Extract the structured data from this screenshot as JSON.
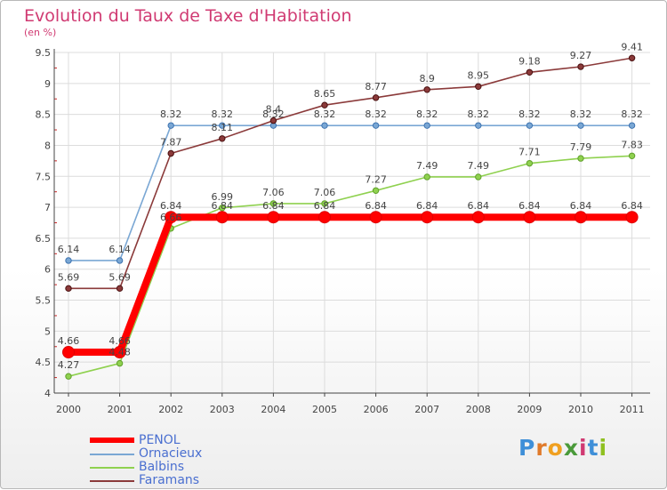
{
  "chart_data": {
    "type": "line",
    "title": "Evolution du Taux de Taxe d'Habitation",
    "subtitle": "(en %)",
    "x": [
      "2000",
      "2001",
      "2002",
      "2003",
      "2004",
      "2005",
      "2006",
      "2007",
      "2008",
      "2009",
      "2010",
      "2011"
    ],
    "yticks": [
      "4",
      "4.5",
      "5",
      "5.5",
      "6",
      "6.5",
      "7",
      "7.5",
      "8",
      "8.5",
      "9",
      "9.5"
    ],
    "ylim": [
      4,
      9.5
    ],
    "grid": true,
    "legend_position": "bottom-left",
    "series": [
      {
        "name": "Balbins",
        "color": "#8fd14f",
        "marker_stroke": "#5fa02a",
        "values": [
          4.27,
          4.48,
          6.66,
          6.99,
          7.06,
          7.06,
          7.27,
          7.49,
          7.49,
          7.71,
          7.79,
          7.83
        ],
        "labels": [
          "4.27",
          "4.48",
          "6.66",
          "6.99",
          "7.06",
          "7.06",
          "7.27",
          "7.49",
          "7.49",
          "7.71",
          "7.79",
          "7.83"
        ]
      },
      {
        "name": "Ornacieux",
        "color": "#7aa7d4",
        "marker_stroke": "#3d73b0",
        "values": [
          6.14,
          6.14,
          8.32,
          8.32,
          8.32,
          8.32,
          8.32,
          8.32,
          8.32,
          8.32,
          8.32,
          8.32
        ],
        "labels": [
          "6.14",
          "6.14",
          "8.32",
          "8.32",
          "8.32",
          "8.32",
          "8.32",
          "8.32",
          "8.32",
          "8.32",
          "8.32",
          "8.32"
        ]
      },
      {
        "name": "Faramans",
        "color": "#8b3a3a",
        "marker_stroke": "#4a1010",
        "values": [
          5.69,
          5.69,
          7.87,
          8.11,
          8.4,
          8.65,
          8.77,
          8.9,
          8.95,
          9.18,
          9.27,
          9.41
        ],
        "labels": [
          "5.69",
          "5.69",
          "7.87",
          "8.11",
          "8.4",
          "8.65",
          "8.77",
          "8.9",
          "8.95",
          "9.18",
          "9.27",
          "9.41"
        ]
      },
      {
        "name": "PENOL",
        "color": "#ff0000",
        "marker_stroke": "#e00000",
        "values": [
          4.66,
          4.66,
          6.84,
          6.84,
          6.84,
          6.84,
          6.84,
          6.84,
          6.84,
          6.84,
          6.84,
          6.84
        ],
        "labels": [
          "4.66",
          "4.66",
          "6.84",
          "6.84",
          "6.84",
          "6.84",
          "6.84",
          "6.84",
          "6.84",
          "6.84",
          "6.84",
          "6.84"
        ]
      }
    ]
  },
  "legend": [
    {
      "label": "PENOL",
      "color": "#ff0000"
    },
    {
      "label": "Ornacieux",
      "color": "#7aa7d4"
    },
    {
      "label": "Balbins",
      "color": "#8fd14f"
    },
    {
      "label": "Faramans",
      "color": "#8b3a3a"
    }
  ],
  "logo": {
    "letters": [
      "P",
      "r",
      "o",
      "x",
      "i",
      "t",
      "i"
    ],
    "colors": [
      "#3f8fd8",
      "#e07a2a",
      "#f0a020",
      "#4a9a3a",
      "#d03a72",
      "#3f8fd8",
      "#8fc020"
    ]
  }
}
